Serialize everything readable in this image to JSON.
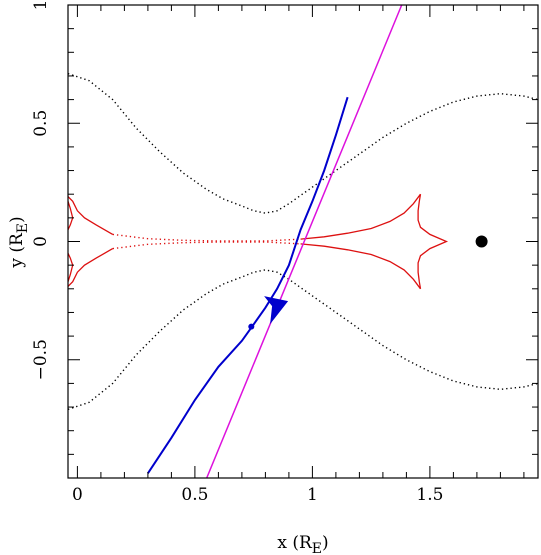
{
  "chart_data": {
    "type": "line",
    "title": "",
    "xlabel": "x (R",
    "xlabel_sub": "E",
    "xlabel_close": ")",
    "ylabel": "y (R",
    "ylabel_sub": "E",
    "ylabel_close": ")",
    "xlim": [
      -0.04,
      1.96
    ],
    "ylim": [
      -1.0,
      1.0
    ],
    "x_ticks_major": [
      0,
      0.5,
      1,
      1.5
    ],
    "x_tick_labels": [
      "0",
      "0.5",
      "1",
      "1.5"
    ],
    "y_ticks_major": [
      -0.5,
      0,
      0.5,
      1
    ],
    "y_tick_labels": [
      "−0.5",
      "0",
      "0.5",
      "1"
    ],
    "minor_step": 0.1,
    "grid": false,
    "colors": {
      "critical_curve": "#000000",
      "caustic": "#dd1111",
      "blue_track": "#0000cc",
      "magenta_line": "#dd11dd",
      "lens_point": "#000000"
    },
    "series": [
      {
        "kind": "critical-curve-upper",
        "style": "dotted",
        "points": [
          [
            -0.04,
            0.71
          ],
          [
            0.05,
            0.68
          ],
          [
            0.15,
            0.6
          ],
          [
            0.25,
            0.48
          ],
          [
            0.35,
            0.38
          ],
          [
            0.45,
            0.29
          ],
          [
            0.55,
            0.22
          ],
          [
            0.62,
            0.18
          ],
          [
            0.7,
            0.15
          ],
          [
            0.75,
            0.13
          ],
          [
            0.8,
            0.12
          ],
          [
            0.85,
            0.13
          ],
          [
            0.9,
            0.16
          ],
          [
            1.0,
            0.23
          ],
          [
            1.1,
            0.3
          ],
          [
            1.2,
            0.37
          ],
          [
            1.3,
            0.44
          ],
          [
            1.4,
            0.5
          ],
          [
            1.5,
            0.55
          ],
          [
            1.6,
            0.59
          ],
          [
            1.7,
            0.615
          ],
          [
            1.8,
            0.625
          ],
          [
            1.9,
            0.615
          ],
          [
            1.96,
            0.6
          ]
        ]
      },
      {
        "kind": "critical-curve-lower",
        "style": "dotted",
        "points": [
          [
            -0.04,
            -0.71
          ],
          [
            0.05,
            -0.68
          ],
          [
            0.15,
            -0.6
          ],
          [
            0.25,
            -0.48
          ],
          [
            0.35,
            -0.38
          ],
          [
            0.45,
            -0.29
          ],
          [
            0.55,
            -0.22
          ],
          [
            0.62,
            -0.18
          ],
          [
            0.7,
            -0.15
          ],
          [
            0.75,
            -0.13
          ],
          [
            0.8,
            -0.12
          ],
          [
            0.85,
            -0.13
          ],
          [
            0.9,
            -0.16
          ],
          [
            1.0,
            -0.23
          ],
          [
            1.1,
            -0.3
          ],
          [
            1.2,
            -0.37
          ],
          [
            1.3,
            -0.44
          ],
          [
            1.4,
            -0.5
          ],
          [
            1.5,
            -0.55
          ],
          [
            1.6,
            -0.59
          ],
          [
            1.7,
            -0.615
          ],
          [
            1.8,
            -0.625
          ],
          [
            1.9,
            -0.615
          ],
          [
            1.96,
            -0.6
          ]
        ]
      },
      {
        "kind": "caustic-right",
        "style": "solid",
        "points": [
          [
            1.46,
            0.2
          ],
          [
            1.455,
            0.17
          ],
          [
            1.45,
            0.13
          ],
          [
            1.45,
            0.09
          ],
          [
            1.46,
            0.06
          ],
          [
            1.5,
            0.03
          ],
          [
            1.57,
            0.0
          ],
          [
            1.5,
            -0.03
          ],
          [
            1.46,
            -0.06
          ],
          [
            1.45,
            -0.09
          ],
          [
            1.45,
            -0.13
          ],
          [
            1.455,
            -0.17
          ],
          [
            1.46,
            -0.2
          ]
        ]
      },
      {
        "kind": "caustic-right-upper-arc",
        "style": "solid",
        "points": [
          [
            1.46,
            0.2
          ],
          [
            1.43,
            0.16
          ],
          [
            1.39,
            0.12
          ],
          [
            1.33,
            0.085
          ],
          [
            1.25,
            0.055
          ],
          [
            1.15,
            0.035
          ],
          [
            1.05,
            0.02
          ],
          [
            0.95,
            0.01
          ]
        ]
      },
      {
        "kind": "caustic-right-lower-arc",
        "style": "solid",
        "points": [
          [
            1.46,
            -0.2
          ],
          [
            1.43,
            -0.16
          ],
          [
            1.39,
            -0.12
          ],
          [
            1.33,
            -0.085
          ],
          [
            1.25,
            -0.055
          ],
          [
            1.15,
            -0.035
          ],
          [
            1.05,
            -0.02
          ],
          [
            0.95,
            -0.01
          ]
        ]
      },
      {
        "kind": "caustic-center",
        "style": "dotted",
        "points": [
          [
            0.15,
            0.03
          ],
          [
            0.3,
            0.012
          ],
          [
            0.45,
            0.005
          ],
          [
            0.6,
            0.002
          ],
          [
            0.8,
            0.002
          ],
          [
            0.95,
            0.01
          ]
        ]
      },
      {
        "kind": "caustic-center-lower",
        "style": "dotted",
        "points": [
          [
            0.15,
            -0.03
          ],
          [
            0.3,
            -0.012
          ],
          [
            0.45,
            -0.005
          ],
          [
            0.6,
            -0.002
          ],
          [
            0.8,
            -0.002
          ],
          [
            0.95,
            -0.01
          ]
        ]
      },
      {
        "kind": "caustic-left-upper",
        "style": "solid",
        "points": [
          [
            -0.04,
            0.19
          ],
          [
            -0.02,
            0.17
          ],
          [
            0.0,
            0.13
          ],
          [
            0.03,
            0.1
          ],
          [
            0.08,
            0.07
          ],
          [
            0.15,
            0.03
          ]
        ]
      },
      {
        "kind": "caustic-left-lower",
        "style": "solid",
        "points": [
          [
            -0.04,
            -0.19
          ],
          [
            -0.02,
            -0.17
          ],
          [
            0.0,
            -0.13
          ],
          [
            0.03,
            -0.1
          ],
          [
            0.08,
            -0.07
          ],
          [
            0.15,
            -0.03
          ]
        ]
      },
      {
        "kind": "caustic-left-cusp-upper",
        "style": "solid",
        "points": [
          [
            -0.04,
            0.17
          ],
          [
            -0.03,
            0.14
          ],
          [
            -0.02,
            0.1
          ],
          [
            -0.03,
            0.07
          ],
          [
            -0.04,
            0.05
          ]
        ]
      },
      {
        "kind": "caustic-left-cusp-lower",
        "style": "solid",
        "points": [
          [
            -0.04,
            -0.17
          ],
          [
            -0.03,
            -0.14
          ],
          [
            -0.02,
            -0.1
          ],
          [
            -0.03,
            -0.07
          ],
          [
            -0.04,
            -0.05
          ]
        ]
      },
      {
        "kind": "blue-trajectory",
        "style": "solid",
        "points": [
          [
            0.3,
            -0.98
          ],
          [
            0.4,
            -0.83
          ],
          [
            0.5,
            -0.67
          ],
          [
            0.6,
            -0.53
          ],
          [
            0.7,
            -0.42
          ],
          [
            0.75,
            -0.35
          ],
          [
            0.8,
            -0.28
          ],
          [
            0.85,
            -0.2
          ],
          [
            0.9,
            -0.1
          ],
          [
            0.95,
            0.05
          ],
          [
            1.0,
            0.17
          ],
          [
            1.05,
            0.3
          ],
          [
            1.1,
            0.45
          ],
          [
            1.15,
            0.61
          ]
        ]
      },
      {
        "kind": "magenta-line",
        "style": "solid",
        "points": [
          [
            0.55,
            -1.0
          ],
          [
            1.38,
            1.0
          ]
        ]
      }
    ],
    "markers": [
      {
        "kind": "lens-point",
        "x": 1.72,
        "y": 0.0,
        "shape": "circle",
        "size": "large"
      },
      {
        "kind": "blue-dot",
        "x": 0.74,
        "y": -0.36,
        "shape": "circle",
        "size": "small"
      },
      {
        "kind": "blue-arrow",
        "x": 0.82,
        "y": -0.29,
        "shape": "arrowhead",
        "size": "medium"
      }
    ]
  }
}
